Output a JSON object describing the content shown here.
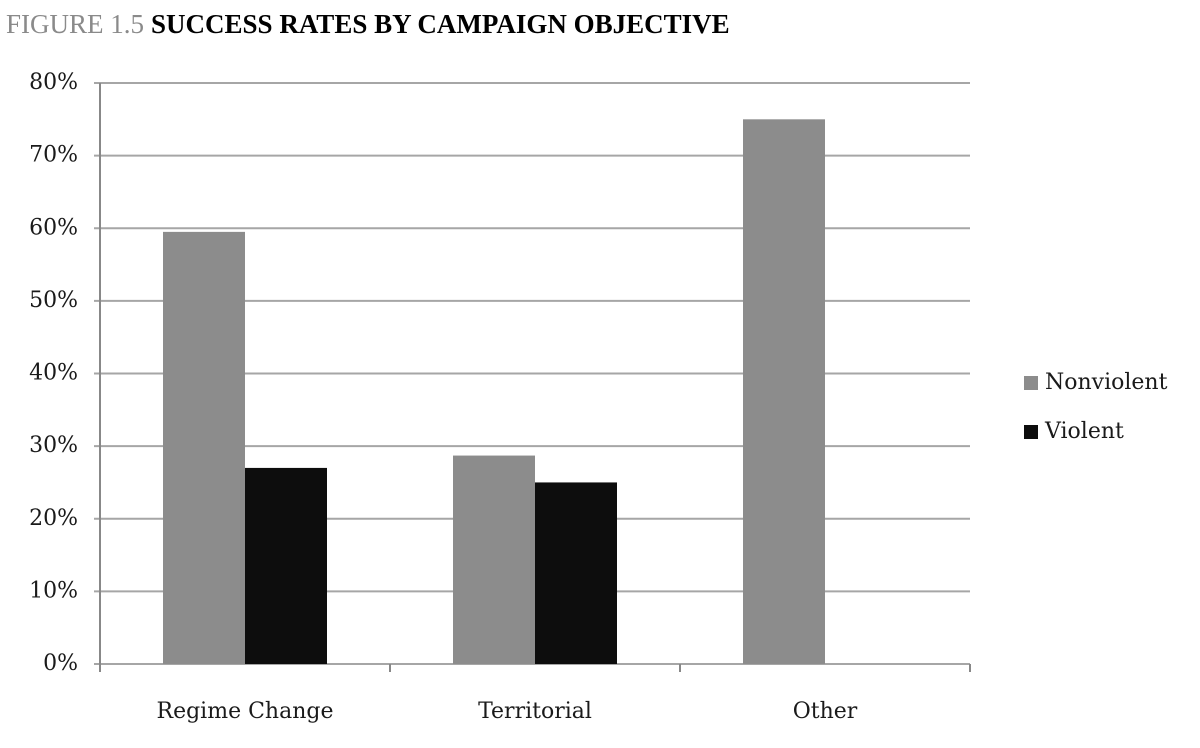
{
  "chart_data": {
    "type": "bar",
    "figure_label": "FIGURE 1.5",
    "title": "SUCCESS RATES BY CAMPAIGN OBJECTIVE",
    "categories": [
      "Regime Change",
      "Territorial",
      "Other"
    ],
    "series": [
      {
        "name": "Nonviolent",
        "color": "#8c8c8c",
        "values": [
          59.5,
          28.7,
          75
        ]
      },
      {
        "name": "Violent",
        "color": "#0d0d0d",
        "values": [
          27,
          25,
          null
        ]
      }
    ],
    "ylim": [
      0,
      80
    ],
    "yticks": [
      {
        "value": 0,
        "label": "0%"
      },
      {
        "value": 10,
        "label": "10%"
      },
      {
        "value": 20,
        "label": "20%"
      },
      {
        "value": 30,
        "label": "30%"
      },
      {
        "value": 40,
        "label": "40%"
      },
      {
        "value": 50,
        "label": "50%"
      },
      {
        "value": 60,
        "label": "60%"
      },
      {
        "value": 70,
        "label": "70%"
      },
      {
        "value": 80,
        "label": "80%"
      }
    ],
    "grid": true,
    "legend": "right"
  }
}
